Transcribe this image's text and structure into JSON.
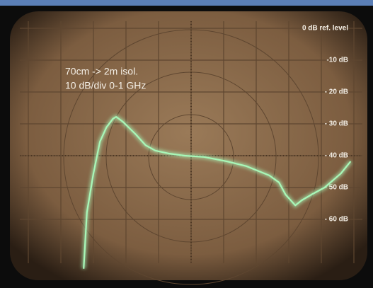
{
  "chart_data": {
    "type": "line",
    "annotations": [
      "70cm -> 2m isol.",
      "10 dB/div 0-1 GHz"
    ],
    "xlim": [
      0,
      1
    ],
    "ylim": [
      -80,
      0
    ],
    "yticks": [
      {
        "value": 0,
        "label": "0 dB ref. level"
      },
      {
        "value": -10,
        "label": "-10 dB"
      },
      {
        "value": -20,
        "label": "- 20 dB"
      },
      {
        "value": -30,
        "label": "- 30 dB"
      },
      {
        "value": -40,
        "label": "- 40 dB"
      },
      {
        "value": -50,
        "label": "- 50 dB"
      },
      {
        "value": -60,
        "label": "- 60 dB"
      }
    ],
    "grid": true,
    "series": [
      {
        "color": "#a8f7b8",
        "x": [
          0.17,
          0.18,
          0.2,
          0.22,
          0.24,
          0.26,
          0.27,
          0.29,
          0.33,
          0.36,
          0.39,
          0.43,
          0.48,
          0.54,
          0.61,
          0.67,
          0.74,
          0.77,
          0.79,
          0.82,
          0.84,
          0.87,
          0.91,
          0.96,
          0.99
        ],
        "values": [
          -75.5,
          -57.8,
          -45.6,
          -35.6,
          -31.1,
          -28.4,
          -27.8,
          -29.3,
          -33.3,
          -36.7,
          -38.4,
          -39.3,
          -40,
          -40.4,
          -41.8,
          -43.3,
          -46.2,
          -48.4,
          -52.2,
          -55.6,
          -54,
          -52.2,
          -50,
          -45.6,
          -41.8
        ]
      }
    ]
  }
}
